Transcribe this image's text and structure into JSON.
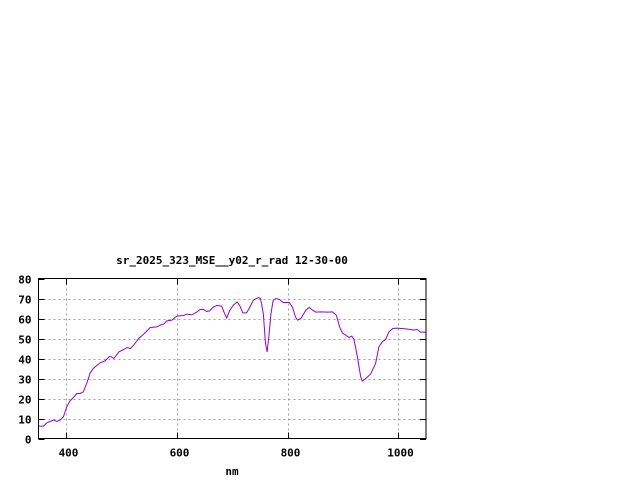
{
  "chart_data": {
    "type": "line",
    "title": "sr_2025_323_MSE__y02_r_rad 12-30-00",
    "xlabel": "nm",
    "ylabel": "",
    "xlim": [
      350,
      1050
    ],
    "ylim": [
      0,
      80
    ],
    "xticks": [
      400,
      600,
      800,
      1000
    ],
    "yticks": [
      0,
      10,
      20,
      30,
      40,
      50,
      60,
      70,
      80
    ],
    "grid": true,
    "colors": {
      "series": "#9400d3",
      "grid": "#a0a0a0",
      "axes": "#000000"
    },
    "series": [
      {
        "x": [
          350,
          359,
          365,
          371,
          377,
          383,
          389,
          395,
          401,
          407,
          413,
          419,
          425,
          431,
          437,
          443,
          449,
          461,
          470,
          479,
          486,
          495,
          504,
          510,
          516,
          522,
          531,
          540,
          552,
          564,
          570,
          576,
          582,
          591,
          600,
          612,
          618,
          627,
          636,
          642,
          648,
          654,
          659,
          666,
          672,
          681,
          685,
          690,
          695,
          702,
          709,
          714,
          719,
          726,
          732,
          738,
          747,
          751,
          756,
          760,
          763,
          766,
          770,
          774,
          779,
          785,
          792,
          803,
          809,
          814,
          818,
          824,
          833,
          839,
          845,
          851,
          860,
          872,
          881,
          888,
          894,
          899,
          905,
          911,
          916,
          920,
          926,
          932,
          935,
          941,
          950,
          959,
          965,
          971,
          977,
          983,
          990,
          998,
          1013,
          1022,
          1028,
          1034,
          1040,
          1050
        ],
        "y": [
          6.2,
          6.2,
          7.8,
          8.5,
          9.2,
          8.5,
          9.2,
          10.8,
          15.8,
          18.8,
          20.5,
          22.5,
          22.5,
          23.3,
          27.5,
          32.5,
          35,
          37.8,
          38.8,
          41.2,
          40,
          43.3,
          44.5,
          45.5,
          45,
          46.7,
          50,
          52.2,
          55.5,
          55.8,
          56.7,
          57.2,
          58.8,
          59.2,
          61.2,
          61.5,
          62.2,
          61.8,
          63.2,
          64.5,
          64.5,
          63.5,
          63.8,
          65.8,
          66.5,
          66.2,
          63.3,
          60.2,
          63.8,
          66.7,
          68.3,
          66.2,
          62.8,
          62.8,
          65.8,
          69.2,
          70.5,
          70,
          62.5,
          47.5,
          43.3,
          50.8,
          62.5,
          69.2,
          70,
          69.5,
          68,
          68,
          65.5,
          60.8,
          59.2,
          60,
          64.2,
          65.5,
          64.2,
          63.2,
          63.3,
          63.2,
          63.3,
          61.7,
          55.8,
          52.8,
          51.7,
          50.5,
          51.2,
          49.5,
          40.8,
          30.8,
          28.7,
          30,
          32.2,
          37.5,
          45.8,
          48.3,
          49.5,
          53.3,
          55,
          55.2,
          54.8,
          54.5,
          54.2,
          54.5,
          53.2,
          53.2
        ]
      }
    ]
  }
}
